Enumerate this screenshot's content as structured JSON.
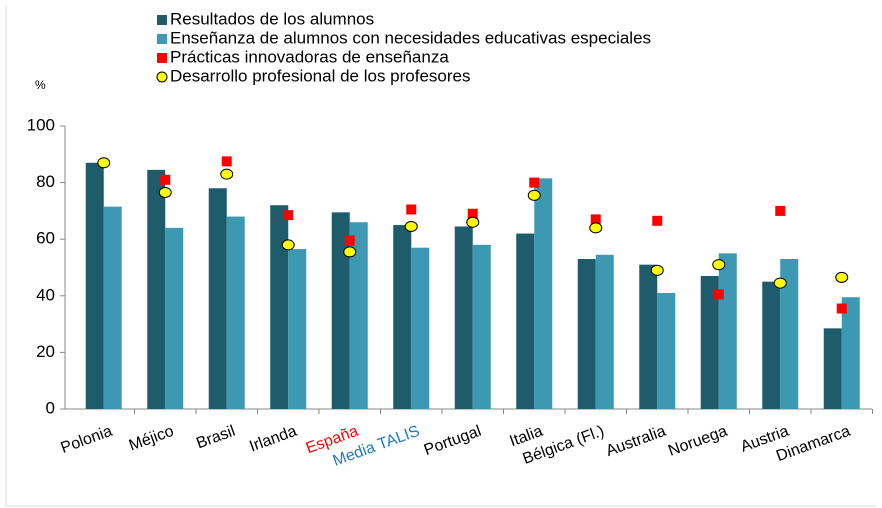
{
  "chart_data": {
    "type": "bar",
    "y_axis_label": "%",
    "categories": [
      "Polonia",
      "Méjico",
      "Brasil",
      "Irlanda",
      "España",
      "Media TALIS",
      "Portugal",
      "Italia",
      "Bélgica (Fl.)",
      "Australia",
      "Noruega",
      "Austria",
      "Dinamarca"
    ],
    "category_colors": [
      "#000000",
      "#000000",
      "#000000",
      "#000000",
      "#ff0000",
      "#1f7ac0",
      "#000000",
      "#000000",
      "#000000",
      "#000000",
      "#000000",
      "#000000",
      "#000000"
    ],
    "series": [
      {
        "name": "Resultados de los alumnos",
        "kind": "bar",
        "color": "#1f5c6b",
        "values": [
          87,
          84.5,
          78,
          72,
          69.5,
          65,
          64.5,
          62,
          53,
          51,
          47,
          45,
          28.5
        ]
      },
      {
        "name": "Enseñanza de alumnos con necesidades educativas especiales",
        "kind": "bar",
        "color": "#3d98b3",
        "values": [
          71.5,
          64,
          68,
          56.5,
          66,
          57,
          58,
          81.5,
          54.5,
          41,
          55,
          53,
          39.5
        ]
      },
      {
        "name": "Prácticas innovadoras de enseñanza",
        "kind": "square",
        "color": "#ff0000",
        "values": [
          null,
          81,
          87.5,
          68.5,
          59.5,
          70.5,
          69,
          80,
          67,
          66.5,
          40.5,
          70,
          35.5
        ]
      },
      {
        "name": "Desarrollo profesional de los profesores",
        "kind": "circle",
        "color": "#ffff00",
        "values": [
          87,
          76.5,
          83,
          58,
          55.5,
          64.5,
          66,
          75.5,
          64,
          49,
          51,
          44.5,
          46.5
        ]
      }
    ],
    "ylim": [
      0,
      100
    ],
    "yticks": [
      0,
      20,
      40,
      60,
      80,
      100
    ],
    "grid": false
  }
}
